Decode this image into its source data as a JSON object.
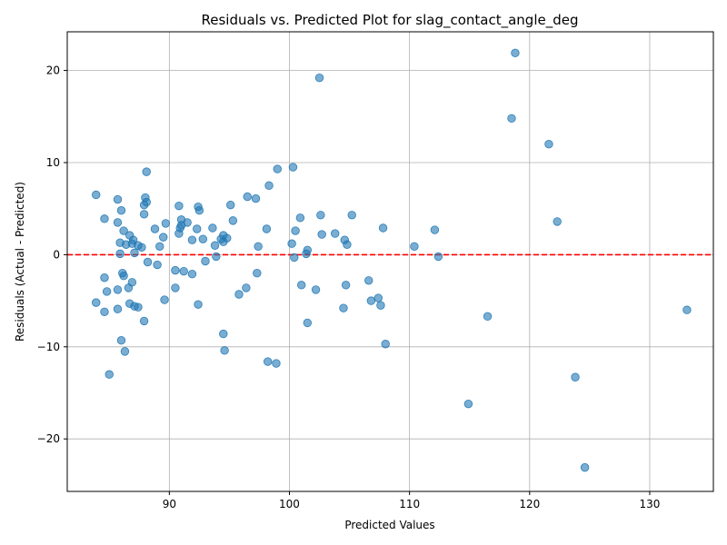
{
  "chart_data": {
    "type": "scatter",
    "title": "Residuals vs. Predicted Plot for slag_contact_angle_deg",
    "xlabel": "Predicted Values",
    "ylabel": "Residuals (Actual - Predicted)",
    "xlim": [
      81.5,
      135.3
    ],
    "ylim": [
      -25.7,
      24.2
    ],
    "xticks": [
      90,
      100,
      110,
      120,
      130
    ],
    "yticks": [
      -20,
      -10,
      0,
      10,
      20
    ],
    "ytick_labels": [
      "−20",
      "−10",
      "0",
      "10",
      "20"
    ],
    "grid": true,
    "reference_line": {
      "y": 0,
      "style": "dashed",
      "color": "#ff0000"
    },
    "point_color": "#1f77b4",
    "point_alpha": 0.6,
    "points": [
      [
        83.9,
        6.5
      ],
      [
        84.6,
        3.9
      ],
      [
        85.7,
        6.0
      ],
      [
        85.7,
        3.5
      ],
      [
        86.0,
        4.8
      ],
      [
        86.2,
        2.6
      ],
      [
        85.9,
        1.3
      ],
      [
        86.4,
        1.1
      ],
      [
        85.9,
        0.1
      ],
      [
        84.6,
        -2.5
      ],
      [
        84.8,
        -4.0
      ],
      [
        85.7,
        -3.8
      ],
      [
        86.1,
        -2.0
      ],
      [
        86.2,
        -2.3
      ],
      [
        83.9,
        -5.2
      ],
      [
        84.6,
        -6.2
      ],
      [
        85.7,
        -5.9
      ],
      [
        86.0,
        -9.3
      ],
      [
        86.3,
        -10.5
      ],
      [
        85.0,
        -13.0
      ],
      [
        86.7,
        2.1
      ],
      [
        86.9,
        1.2
      ],
      [
        87.0,
        1.6
      ],
      [
        87.4,
        1.0
      ],
      [
        87.7,
        0.8
      ],
      [
        87.1,
        0.2
      ],
      [
        86.9,
        -3.0
      ],
      [
        86.6,
        -3.6
      ],
      [
        86.7,
        -5.3
      ],
      [
        87.1,
        -5.6
      ],
      [
        87.4,
        -5.7
      ],
      [
        87.9,
        5.4
      ],
      [
        88.0,
        6.2
      ],
      [
        88.1,
        5.7
      ],
      [
        87.9,
        4.4
      ],
      [
        88.1,
        9.0
      ],
      [
        88.2,
        -0.8
      ],
      [
        88.8,
        2.8
      ],
      [
        89.0,
        -1.1
      ],
      [
        89.2,
        0.9
      ],
      [
        89.5,
        1.9
      ],
      [
        89.7,
        3.4
      ],
      [
        89.6,
        -4.9
      ],
      [
        87.9,
        -7.2
      ],
      [
        90.5,
        -1.7
      ],
      [
        90.5,
        -3.6
      ],
      [
        90.8,
        2.3
      ],
      [
        90.9,
        2.9
      ],
      [
        91.0,
        3.2
      ],
      [
        91.0,
        3.8
      ],
      [
        90.8,
        5.3
      ],
      [
        91.2,
        -1.8
      ],
      [
        91.5,
        3.5
      ],
      [
        91.9,
        1.6
      ],
      [
        91.9,
        -2.1
      ],
      [
        92.3,
        2.8
      ],
      [
        92.4,
        5.2
      ],
      [
        92.5,
        4.8
      ],
      [
        92.4,
        -5.4
      ],
      [
        92.8,
        1.7
      ],
      [
        93.0,
        -0.7
      ],
      [
        93.6,
        2.9
      ],
      [
        93.8,
        1.0
      ],
      [
        93.9,
        -0.2
      ],
      [
        94.3,
        1.7
      ],
      [
        94.5,
        2.1
      ],
      [
        94.5,
        1.4
      ],
      [
        94.5,
        -8.6
      ],
      [
        94.6,
        -10.4
      ],
      [
        94.8,
        1.8
      ],
      [
        95.1,
        5.4
      ],
      [
        95.3,
        3.7
      ],
      [
        95.8,
        -4.3
      ],
      [
        96.4,
        -3.6
      ],
      [
        96.5,
        6.3
      ],
      [
        97.2,
        6.1
      ],
      [
        97.3,
        -2.0
      ],
      [
        97.4,
        0.9
      ],
      [
        98.1,
        2.8
      ],
      [
        98.3,
        7.5
      ],
      [
        98.2,
        -11.6
      ],
      [
        98.9,
        -11.8
      ],
      [
        99.0,
        9.3
      ],
      [
        100.2,
        1.2
      ],
      [
        100.3,
        9.5
      ],
      [
        100.4,
        -0.3
      ],
      [
        100.5,
        2.6
      ],
      [
        100.9,
        4.0
      ],
      [
        101.0,
        -3.3
      ],
      [
        101.4,
        0.1
      ],
      [
        101.5,
        0.5
      ],
      [
        101.5,
        -7.4
      ],
      [
        102.2,
        -3.8
      ],
      [
        102.5,
        19.2
      ],
      [
        102.6,
        4.3
      ],
      [
        102.7,
        2.2
      ],
      [
        103.8,
        2.3
      ],
      [
        104.5,
        -5.8
      ],
      [
        104.6,
        1.6
      ],
      [
        104.7,
        -3.3
      ],
      [
        104.8,
        1.1
      ],
      [
        105.2,
        4.3
      ],
      [
        106.6,
        -2.8
      ],
      [
        106.8,
        -5.0
      ],
      [
        107.4,
        -4.7
      ],
      [
        107.6,
        -5.5
      ],
      [
        107.8,
        2.9
      ],
      [
        108.0,
        -9.7
      ],
      [
        110.4,
        0.9
      ],
      [
        112.1,
        2.7
      ],
      [
        112.4,
        -0.2
      ],
      [
        114.9,
        -16.2
      ],
      [
        116.5,
        -6.7
      ],
      [
        118.5,
        14.8
      ],
      [
        118.8,
        21.9
      ],
      [
        121.6,
        12.0
      ],
      [
        122.3,
        3.6
      ],
      [
        123.8,
        -13.3
      ],
      [
        124.6,
        -23.1
      ],
      [
        133.1,
        -6.0
      ]
    ]
  }
}
